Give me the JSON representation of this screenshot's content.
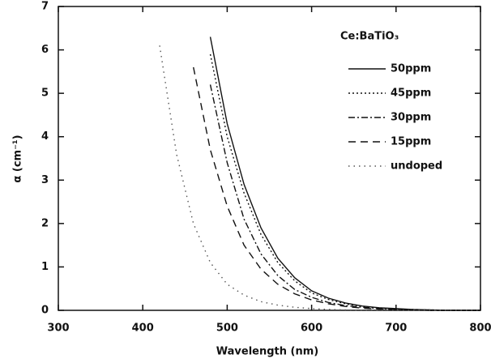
{
  "chart_data": {
    "type": "line",
    "xlabel": "Wavelength (nm)",
    "ylabel": "α (cm⁻¹)",
    "legend_title": "Ce:BaTiO₃",
    "legend": "upper right",
    "x": [
      420,
      440,
      460,
      480,
      500,
      520,
      540,
      560,
      580,
      600,
      620,
      640,
      660,
      680,
      700,
      720,
      740,
      760,
      780,
      800
    ],
    "series": [
      {
        "name": "50ppm",
        "color": "#111111",
        "dash": "solid",
        "values": [
          null,
          null,
          null,
          6.3,
          4.3,
          2.9,
          1.9,
          1.2,
          0.75,
          0.45,
          0.28,
          0.17,
          0.1,
          0.06,
          0.04,
          0.02,
          0.01,
          0,
          0,
          0
        ]
      },
      {
        "name": "45ppm",
        "color": "#111111",
        "dash": "dotted",
        "values": [
          null,
          null,
          null,
          5.9,
          4.0,
          2.7,
          1.75,
          1.1,
          0.68,
          0.4,
          0.25,
          0.15,
          0.09,
          0.05,
          0.03,
          0.02,
          0.01,
          0,
          0,
          0
        ]
      },
      {
        "name": "30ppm",
        "color": "#111111",
        "dash": "dashdot",
        "values": [
          null,
          null,
          null,
          5.2,
          3.4,
          2.1,
          1.3,
          0.8,
          0.48,
          0.3,
          0.18,
          0.11,
          0.07,
          0.04,
          0.02,
          0.01,
          0,
          0,
          0,
          0
        ]
      },
      {
        "name": "15ppm",
        "color": "#111111",
        "dash": "dashed",
        "values": [
          null,
          null,
          5.6,
          3.7,
          2.4,
          1.5,
          0.95,
          0.6,
          0.38,
          0.24,
          0.15,
          0.09,
          0.05,
          0.03,
          0.02,
          0.01,
          0,
          0,
          0,
          0
        ]
      },
      {
        "name": "undoped",
        "color": "#555555",
        "dash": "sparse",
        "values": [
          6.1,
          3.6,
          2.0,
          1.1,
          0.6,
          0.35,
          0.2,
          0.12,
          0.07,
          0.04,
          0.02,
          0.01,
          0,
          0,
          0,
          0,
          0,
          0,
          0,
          0
        ]
      }
    ],
    "xlim": [
      300,
      800
    ],
    "xticks": [
      300,
      400,
      500,
      600,
      700,
      800
    ],
    "ylim": [
      0,
      7
    ],
    "yticks": [
      0,
      1,
      2,
      3,
      4,
      5,
      6,
      7
    ],
    "grid": false
  }
}
